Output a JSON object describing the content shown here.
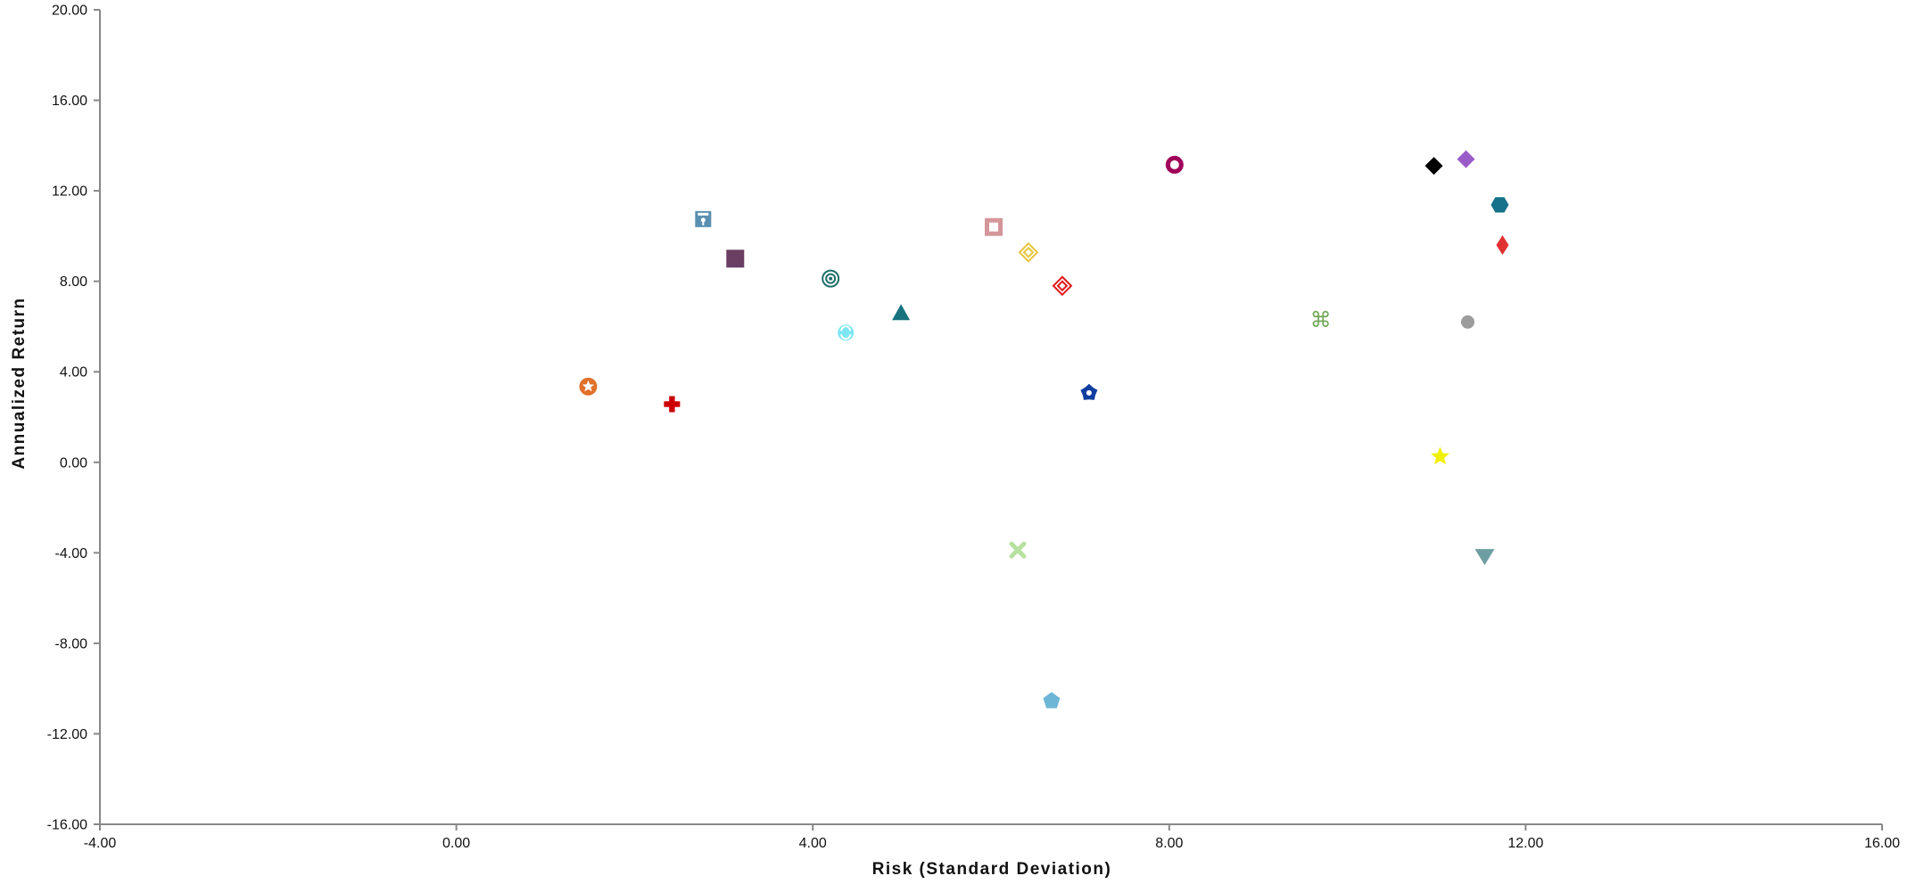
{
  "chart_data": {
    "type": "scatter",
    "xlabel": "Risk (Standard Deviation)",
    "ylabel": "Annualized  Return",
    "xlim": [
      -4,
      16
    ],
    "ylim": [
      -16,
      20
    ],
    "x_ticks": [
      -4,
      0,
      4,
      8,
      12,
      16
    ],
    "y_ticks": [
      -16,
      -12,
      -8,
      -4,
      0,
      4,
      8,
      12,
      16,
      20
    ],
    "x_tick_labels": [
      "-4.00",
      "0.00",
      "4.00",
      "8.00",
      "12.00",
      "16.00"
    ],
    "y_tick_labels": [
      "-16.00",
      "-12.00",
      "-8.00",
      "-4.00",
      "0.00",
      "4.00",
      "8.00",
      "12.00",
      "16.00",
      "20.00"
    ],
    "grid": false,
    "legend": "none",
    "axis_color": "#888888",
    "points": [
      {
        "x": 1.48,
        "y": 3.35,
        "marker": "star-in-circle",
        "color": "#E0702A"
      },
      {
        "x": 2.42,
        "y": 2.57,
        "marker": "cross",
        "color": "#CC0000"
      },
      {
        "x": 2.77,
        "y": 10.75,
        "marker": "floppy",
        "color": "#5A8FB2"
      },
      {
        "x": 3.13,
        "y": 9.0,
        "marker": "square",
        "color": "#6B3E63"
      },
      {
        "x": 4.2,
        "y": 8.12,
        "marker": "concentric-circle",
        "color": "#1F6F6A"
      },
      {
        "x": 4.37,
        "y": 5.73,
        "marker": "crescent-circle",
        "color": "#7EE6F2"
      },
      {
        "x": 4.99,
        "y": 6.6,
        "marker": "triangle-up",
        "color": "#17727E"
      },
      {
        "x": 6.03,
        "y": 10.4,
        "marker": "hollow-square",
        "color": "#D4969A"
      },
      {
        "x": 6.42,
        "y": 9.28,
        "marker": "diamond-in-diamond",
        "color": "#E8C43A"
      },
      {
        "x": 6.8,
        "y": 7.8,
        "marker": "diamond-in-diamond",
        "color": "#E01A1A"
      },
      {
        "x": 6.3,
        "y": -3.88,
        "marker": "x-cross",
        "color": "#B8E0A0"
      },
      {
        "x": 6.68,
        "y": -10.55,
        "marker": "pentagon",
        "color": "#6EB6D6"
      },
      {
        "x": 7.1,
        "y": 3.07,
        "marker": "gear",
        "color": "#103EA0"
      },
      {
        "x": 8.06,
        "y": 13.15,
        "marker": "ring",
        "color": "#A0005A"
      },
      {
        "x": 9.7,
        "y": 6.3,
        "marker": "command",
        "color": "#73A85A"
      },
      {
        "x": 10.97,
        "y": 13.1,
        "marker": "diamond",
        "color": "#000000"
      },
      {
        "x": 11.33,
        "y": 13.4,
        "marker": "diamond",
        "color": "#9B5BC8"
      },
      {
        "x": 11.04,
        "y": 0.25,
        "marker": "star",
        "color": "#F0F000"
      },
      {
        "x": 11.35,
        "y": 6.2,
        "marker": "circle",
        "color": "#9C9C9C"
      },
      {
        "x": 11.54,
        "y": -4.15,
        "marker": "triangle-down",
        "color": "#6E9EA2"
      },
      {
        "x": 11.71,
        "y": 11.38,
        "marker": "hexagon",
        "color": "#16728A"
      },
      {
        "x": 11.74,
        "y": 9.6,
        "marker": "narrow-diamond",
        "color": "#E03030"
      }
    ]
  }
}
